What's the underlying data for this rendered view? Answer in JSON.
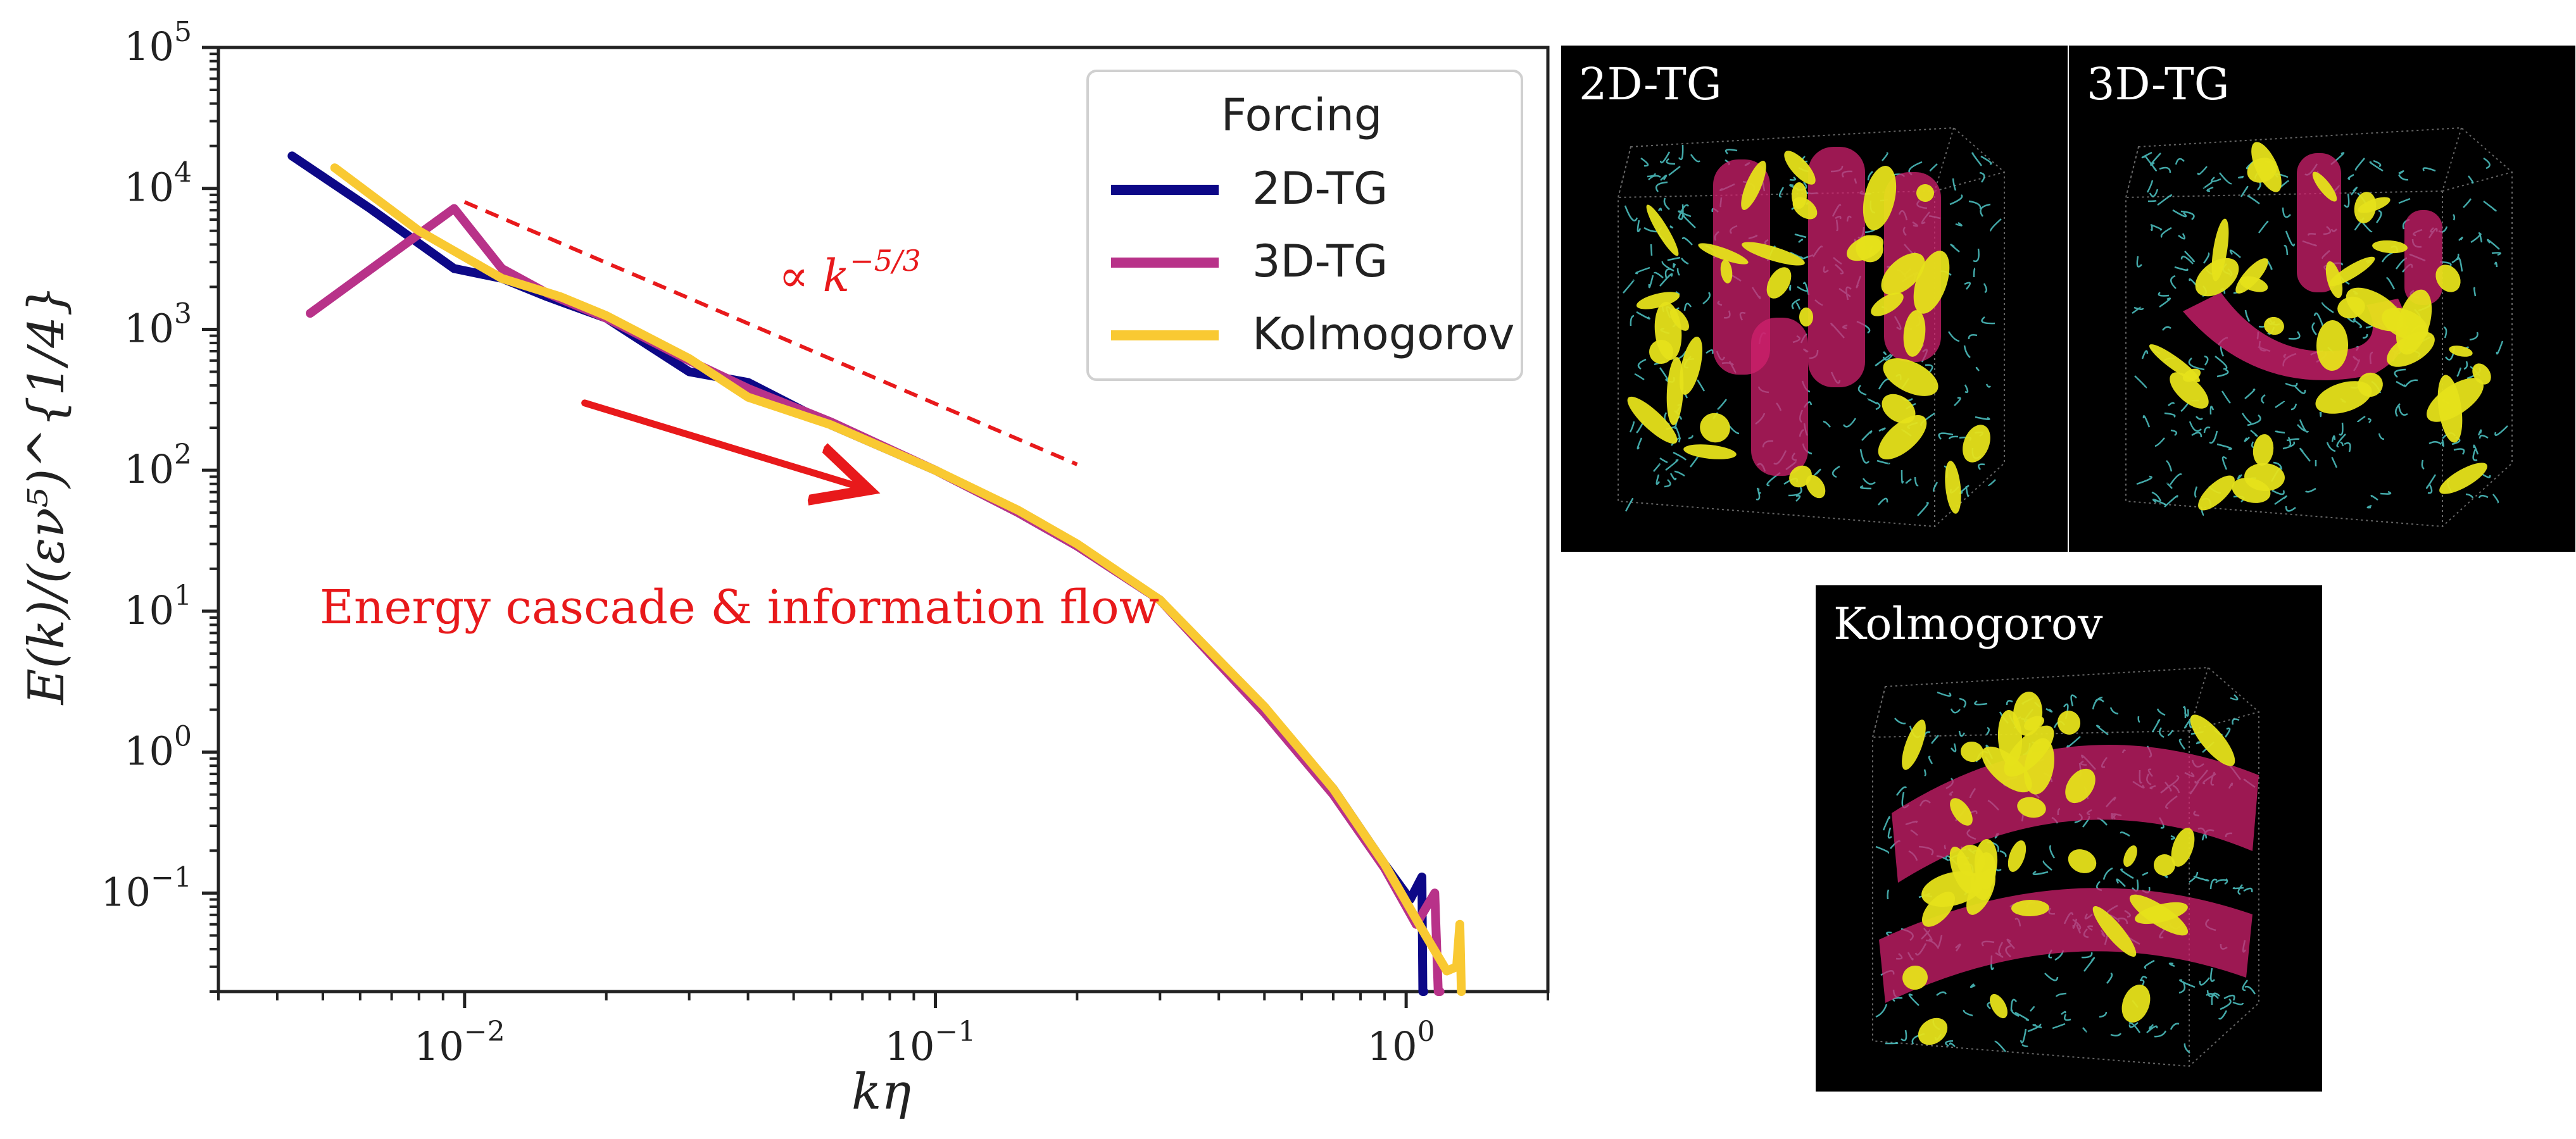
{
  "chart_data": {
    "type": "line",
    "xscale": "log",
    "yscale": "log",
    "xlim": [
      0.003,
      2.0
    ],
    "ylim": [
      0.02,
      100000
    ],
    "xlabel": "kη",
    "ylabel": "E(k)/(εν⁵)^{1/4}",
    "x_ticks": [
      {
        "value": 0.01,
        "base": "10",
        "exp": "−2"
      },
      {
        "value": 0.1,
        "base": "10",
        "exp": "−1"
      },
      {
        "value": 1,
        "base": "10",
        "exp": "0"
      }
    ],
    "y_ticks": [
      {
        "value": 0.1,
        "base": "10",
        "exp": "−1"
      },
      {
        "value": 1,
        "base": "10",
        "exp": "0"
      },
      {
        "value": 10,
        "base": "10",
        "exp": "1"
      },
      {
        "value": 100,
        "base": "10",
        "exp": "2"
      },
      {
        "value": 1000,
        "base": "10",
        "exp": "3"
      },
      {
        "value": 10000,
        "base": "10",
        "exp": "4"
      },
      {
        "value": 100000,
        "base": "10",
        "exp": "5"
      }
    ],
    "legend": {
      "title": "Forcing",
      "placement": "top-right"
    },
    "series": [
      {
        "name": "2D-TG",
        "color": "#0d0887",
        "x": [
          0.0043,
          0.0063,
          0.0095,
          0.012,
          0.015,
          0.02,
          0.03,
          0.04,
          0.06,
          0.1,
          0.15,
          0.2,
          0.3,
          0.5,
          0.7,
          0.9,
          1.02,
          1.08,
          1.085,
          1.09
        ],
        "y": [
          17000,
          7200,
          2700,
          2300,
          1700,
          1200,
          500,
          420,
          210,
          100,
          50,
          29,
          12,
          2.0,
          0.55,
          0.16,
          0.09,
          0.13,
          0.02,
          0.02
        ]
      },
      {
        "name": "3D-TG",
        "color": "#b83289",
        "x": [
          0.0047,
          0.0095,
          0.012,
          0.015,
          0.02,
          0.03,
          0.04,
          0.06,
          0.1,
          0.15,
          0.2,
          0.3,
          0.5,
          0.7,
          0.9,
          1.05,
          1.15,
          1.17,
          1.18
        ],
        "y": [
          1300,
          7200,
          2700,
          1800,
          1200,
          600,
          380,
          220,
          100,
          50,
          29,
          12,
          1.9,
          0.5,
          0.15,
          0.06,
          0.1,
          0.02,
          0.02
        ]
      },
      {
        "name": "Kolmogorov",
        "color": "#f9c932",
        "x": [
          0.0053,
          0.008,
          0.012,
          0.016,
          0.02,
          0.03,
          0.04,
          0.06,
          0.1,
          0.15,
          0.2,
          0.3,
          0.5,
          0.7,
          0.9,
          1.1,
          1.22,
          1.28,
          1.3,
          1.31
        ],
        "y": [
          14000,
          5000,
          2300,
          1700,
          1250,
          620,
          330,
          210,
          100,
          52,
          30,
          12,
          2.1,
          0.55,
          0.16,
          0.05,
          0.028,
          0.03,
          0.06,
          0.02
        ]
      }
    ],
    "reference_line": {
      "label": "∝ k",
      "exp": "−5/3",
      "x": [
        0.01,
        0.2
      ],
      "y": [
        8000,
        110
      ],
      "color": "#e8191b",
      "style": "dashed"
    },
    "annotation": {
      "text": "Energy cascade & information flow",
      "color": "#e8191b",
      "arrow_from": [
        0.018,
        300
      ],
      "arrow_to": [
        0.07,
        75
      ]
    }
  },
  "panels": [
    {
      "label": "2D-TG"
    },
    {
      "label": "3D-TG"
    },
    {
      "label": "Kolmogorov"
    }
  ],
  "colors": {
    "tube_magenta": "#d0206e",
    "blob_yellow": "#e6e21a",
    "filament_cyan": "#4fc7c7",
    "background": "#000000"
  }
}
